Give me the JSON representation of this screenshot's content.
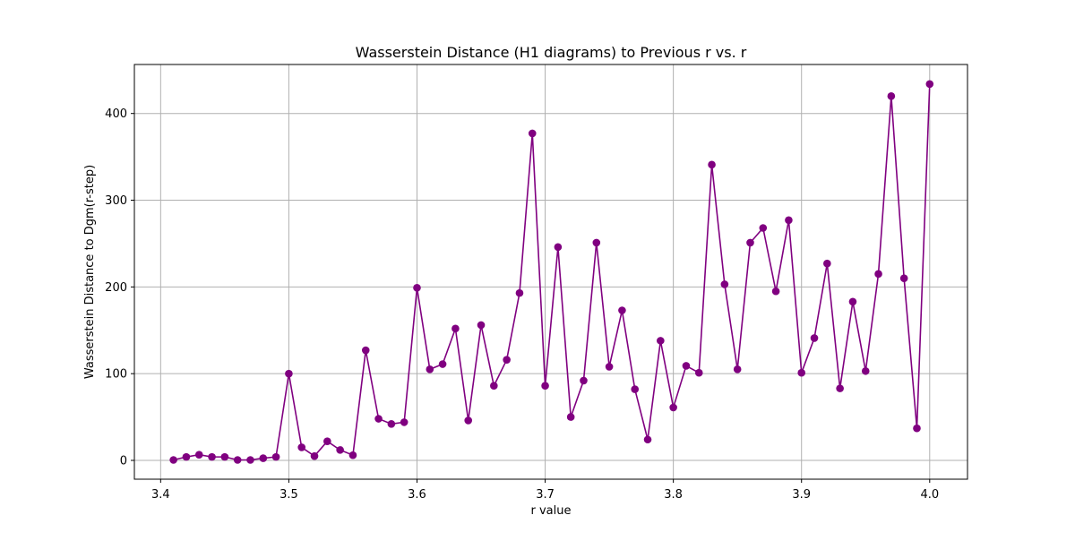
{
  "chart_data": {
    "type": "line",
    "title": "Wasserstein Distance (H1 diagrams) to Previous r vs. r",
    "xlabel": "r value",
    "ylabel": "Wasserstein Distance to Dgm(r-step)",
    "xlim": [
      3.3795,
      4.0295
    ],
    "ylim": [
      -21.7,
      456.5
    ],
    "xticks": [
      3.4,
      3.5,
      3.6,
      3.7,
      3.8,
      3.9,
      4.0
    ],
    "xtick_labels": [
      "3.4",
      "3.5",
      "3.6",
      "3.7",
      "3.8",
      "3.9",
      "4.0"
    ],
    "yticks": [
      0,
      100,
      200,
      300,
      400
    ],
    "ytick_labels": [
      "0",
      "100",
      "200",
      "300",
      "400"
    ],
    "grid": true,
    "legend": "none",
    "series": [
      {
        "color": "#800080",
        "marker": "circle",
        "x": [
          3.41,
          3.42,
          3.43,
          3.44,
          3.45,
          3.46,
          3.47,
          3.48,
          3.49,
          3.5,
          3.51,
          3.52,
          3.53,
          3.54,
          3.55,
          3.56,
          3.57,
          3.58,
          3.59,
          3.6,
          3.61,
          3.62,
          3.63,
          3.64,
          3.65,
          3.66,
          3.67,
          3.68,
          3.69,
          3.7,
          3.71,
          3.72,
          3.73,
          3.74,
          3.75,
          3.76,
          3.77,
          3.78,
          3.79,
          3.8,
          3.81,
          3.82,
          3.83,
          3.84,
          3.85,
          3.86,
          3.87,
          3.88,
          3.89,
          3.9,
          3.91,
          3.92,
          3.93,
          3.94,
          3.95,
          3.96,
          3.97,
          3.98,
          3.99,
          4.0
        ],
        "y": [
          0.5,
          4,
          6.5,
          4,
          4,
          0.5,
          0.5,
          2.5,
          4,
          100,
          15,
          5,
          22,
          12,
          6,
          127,
          48,
          42,
          44,
          199,
          105,
          111,
          152,
          46,
          156,
          86,
          116,
          193,
          377,
          86,
          246,
          50,
          92,
          251,
          108,
          173,
          82,
          24,
          138,
          61,
          109,
          101,
          341,
          203,
          105,
          251,
          268,
          195,
          277,
          101,
          141,
          227,
          83,
          183,
          103,
          215,
          420,
          210,
          37,
          434
        ]
      }
    ]
  }
}
